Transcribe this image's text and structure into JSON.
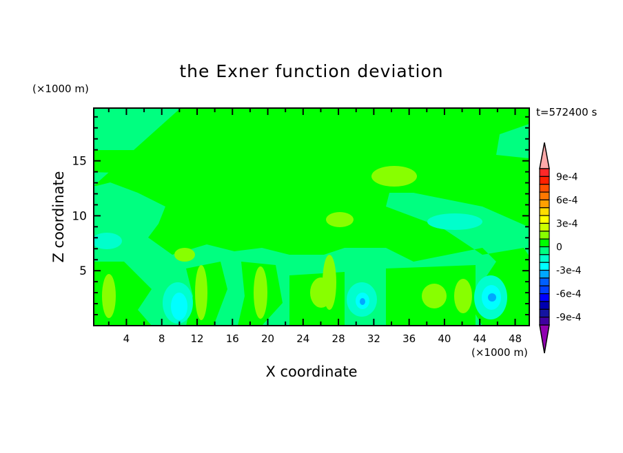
{
  "chart_data": {
    "type": "contour",
    "title": "the Exner function deviation",
    "xlabel": "X coordinate",
    "ylabel": "Z coordinate",
    "x_unit": "(×1000 m)",
    "y_unit": "(×1000 m)",
    "time_label": "t=572400 s",
    "xlim": [
      0.3,
      49.6
    ],
    "ylim": [
      0,
      19.8
    ],
    "x_ticks": [
      "4",
      "8",
      "12",
      "16",
      "20",
      "24",
      "28",
      "32",
      "36",
      "40",
      "44",
      "48"
    ],
    "y_ticks": [
      "5",
      "10",
      "15"
    ],
    "colorbar": {
      "levels_min": -0.001,
      "levels_max": 0.001,
      "step": 0.0001,
      "extend": "both",
      "tick_labels": [
        "9e-4",
        "6e-4",
        "3e-4",
        "0",
        "-3e-4",
        "-6e-4",
        "-9e-4"
      ],
      "tick_values": [
        0.0009,
        0.0006,
        0.0003,
        0,
        -0.0003,
        -0.0006,
        -0.0009
      ],
      "colors_top_to_bottom": [
        "#ff2828",
        "#ff2000",
        "#ff5000",
        "#ff7800",
        "#ffa000",
        "#ffdc00",
        "#ffff00",
        "#ccff00",
        "#88ff00",
        "#00ff00",
        "#00ff80",
        "#00ffcc",
        "#00ffff",
        "#00a8ff",
        "#0060ff",
        "#0040ff",
        "#0000ff",
        "#0000b0",
        "#1414a0",
        "#4000a0"
      ],
      "over_color": "#ffaaaa",
      "under_color": "#9000b0"
    }
  }
}
